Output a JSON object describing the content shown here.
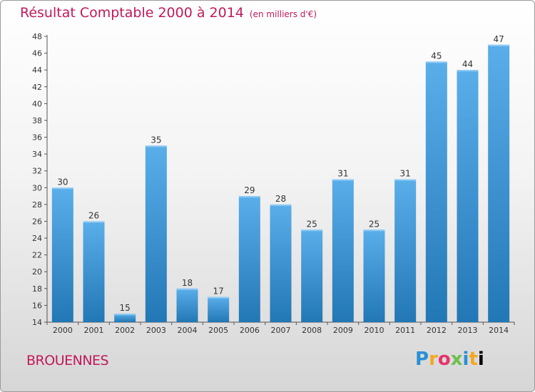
{
  "title": "Résultat Comptable 2000 à 2014",
  "unit_note": "(en milliers d'€)",
  "commune": "BROUENNES",
  "logo": [
    "P",
    "r",
    "o",
    "x",
    "i",
    "t",
    "i"
  ],
  "colors": {
    "title": "#c2185b",
    "bar_top": "#5aaeea",
    "bar_bottom": "#2277b5"
  },
  "chart_data": {
    "type": "bar",
    "title": "Résultat Comptable 2000 à 2014",
    "subtitle": "(en milliers d'€)",
    "xlabel": "",
    "ylabel": "",
    "ylim": [
      14,
      48
    ],
    "ytick_step": 2,
    "grid": false,
    "categories": [
      "2000",
      "2001",
      "2002",
      "2003",
      "2004",
      "2005",
      "2006",
      "2007",
      "2008",
      "2009",
      "2010",
      "2011",
      "2012",
      "2013",
      "2014"
    ],
    "values": [
      30,
      26,
      15,
      35,
      18,
      17,
      29,
      28,
      25,
      31,
      25,
      31,
      45,
      44,
      47
    ]
  }
}
